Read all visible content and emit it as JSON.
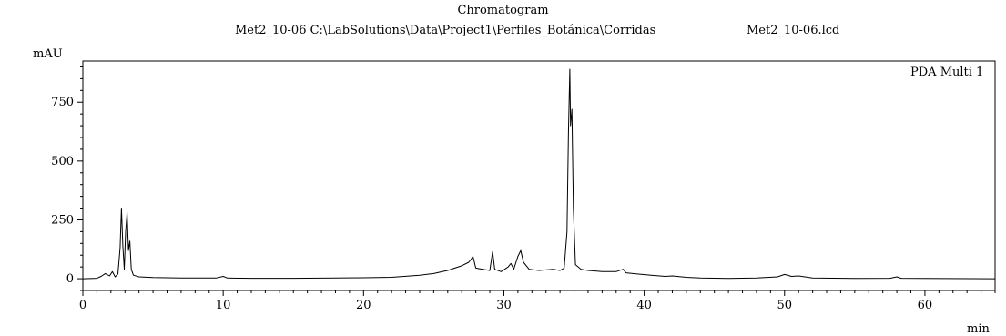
{
  "chart_data": {
    "type": "line",
    "title": "Chromatogram",
    "subtitle_left": "Met2_10-06 C:\\LabSolutions\\Data\\Project1\\Perfiles_Botánica\\Corridas",
    "subtitle_right": "Met2_10-06.lcd",
    "ylabel": "mAU",
    "xlabel": "min",
    "series_label": "PDA Multi 1",
    "xlim": [
      0,
      65
    ],
    "ylim": [
      -50,
      925
    ],
    "x_ticks": [
      0,
      10,
      20,
      30,
      40,
      50,
      60
    ],
    "y_ticks": [
      0,
      250,
      500,
      750
    ],
    "series": [
      {
        "name": "PDA Multi 1",
        "points": [
          [
            0,
            0
          ],
          [
            1.0,
            2
          ],
          [
            1.3,
            10
          ],
          [
            1.6,
            22
          ],
          [
            1.9,
            12
          ],
          [
            2.1,
            30
          ],
          [
            2.3,
            8
          ],
          [
            2.5,
            20
          ],
          [
            2.65,
            130
          ],
          [
            2.75,
            300
          ],
          [
            2.85,
            140
          ],
          [
            2.95,
            40
          ],
          [
            3.05,
            200
          ],
          [
            3.15,
            280
          ],
          [
            3.25,
            120
          ],
          [
            3.35,
            160
          ],
          [
            3.45,
            40
          ],
          [
            3.6,
            15
          ],
          [
            4.0,
            8
          ],
          [
            5.0,
            5
          ],
          [
            7.0,
            3
          ],
          [
            9.5,
            3
          ],
          [
            10.0,
            10
          ],
          [
            10.3,
            3
          ],
          [
            12.0,
            2
          ],
          [
            15.0,
            2
          ],
          [
            18.0,
            3
          ],
          [
            20.0,
            4
          ],
          [
            22.0,
            6
          ],
          [
            24.0,
            15
          ],
          [
            25.0,
            22
          ],
          [
            26.0,
            35
          ],
          [
            26.5,
            45
          ],
          [
            27.0,
            55
          ],
          [
            27.5,
            70
          ],
          [
            27.7,
            85
          ],
          [
            27.8,
            95
          ],
          [
            27.9,
            70
          ],
          [
            28.0,
            45
          ],
          [
            28.5,
            40
          ],
          [
            29.0,
            35
          ],
          [
            29.2,
            115
          ],
          [
            29.35,
            40
          ],
          [
            29.8,
            30
          ],
          [
            30.3,
            50
          ],
          [
            30.5,
            65
          ],
          [
            30.7,
            40
          ],
          [
            31.0,
            95
          ],
          [
            31.2,
            120
          ],
          [
            31.4,
            70
          ],
          [
            31.8,
            40
          ],
          [
            32.5,
            35
          ],
          [
            33.5,
            40
          ],
          [
            34.0,
            35
          ],
          [
            34.3,
            45
          ],
          [
            34.5,
            200
          ],
          [
            34.6,
            620
          ],
          [
            34.7,
            890
          ],
          [
            34.75,
            650
          ],
          [
            34.85,
            720
          ],
          [
            34.95,
            300
          ],
          [
            35.1,
            60
          ],
          [
            35.5,
            40
          ],
          [
            36.0,
            35
          ],
          [
            37.0,
            30
          ],
          [
            38.0,
            30
          ],
          [
            38.5,
            40
          ],
          [
            38.7,
            25
          ],
          [
            39.5,
            20
          ],
          [
            40.5,
            15
          ],
          [
            41.5,
            10
          ],
          [
            42.0,
            12
          ],
          [
            43.0,
            6
          ],
          [
            44.0,
            3
          ],
          [
            46.0,
            1
          ],
          [
            48.0,
            3
          ],
          [
            49.5,
            8
          ],
          [
            50.0,
            18
          ],
          [
            50.5,
            10
          ],
          [
            51.0,
            12
          ],
          [
            52.0,
            3
          ],
          [
            55.0,
            1
          ],
          [
            57.5,
            2
          ],
          [
            58.0,
            8
          ],
          [
            58.3,
            2
          ],
          [
            60.0,
            1
          ],
          [
            65.0,
            0
          ]
        ]
      }
    ],
    "grid": false,
    "colors": {
      "line": "#000000",
      "axis": "#000000",
      "background": "#ffffff"
    }
  }
}
